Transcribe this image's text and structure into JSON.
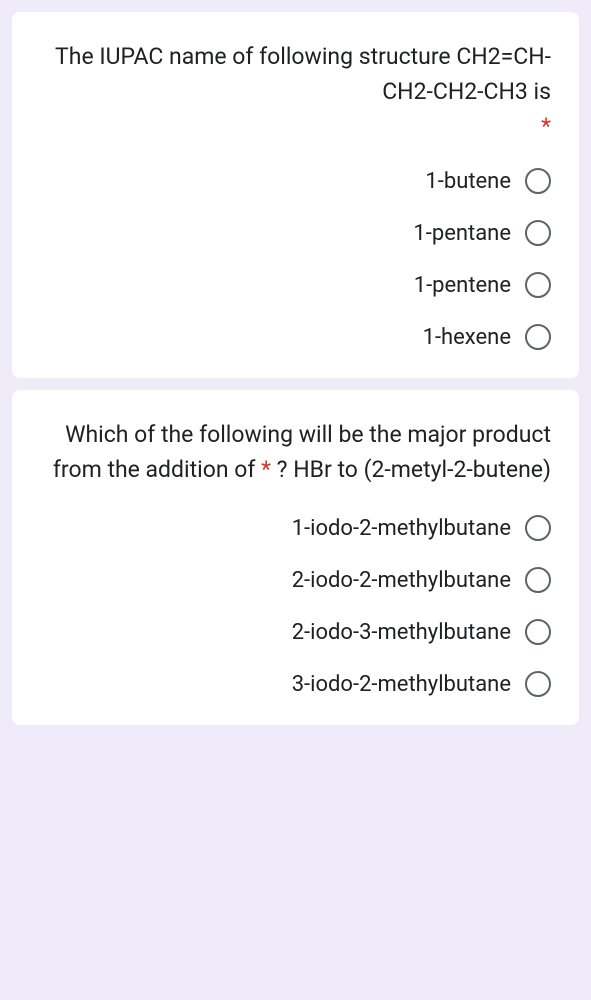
{
  "background_color": "#f0ebf8",
  "card_bg": "#ffffff",
  "text_color": "#202124",
  "required_color": "#d93025",
  "radio_border_color": "#5f6368",
  "question1": {
    "text": "The IUPAC name of following structure CH2=CH-CH2-CH2-CH3 is",
    "required_mark": "*",
    "options": [
      "1-butene",
      "1-pentane",
      "1-pentene",
      "1-hexene"
    ]
  },
  "question2": {
    "text_before_star": "Which of the following will be the major product from the addition of ",
    "star": "*",
    "text_after_star": " ? HBr to (2-metyl-2-butene)",
    "options": [
      "1-iodo-2-methylbutane",
      "2-iodo-2-methylbutane",
      "2-iodo-3-methylbutane",
      "3-iodo-2-methylbutane"
    ]
  }
}
